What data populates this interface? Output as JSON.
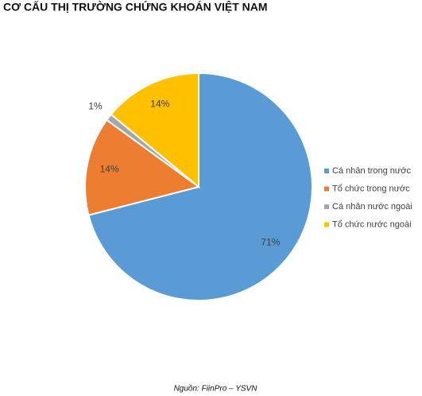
{
  "chart_data": {
    "type": "pie",
    "title": "CƠ CẤU THỊ TRƯỜNG CHỨNG KHOÁN VIỆT NAM",
    "categories": [
      "Cá nhân trong nước",
      "Tổ chức trong nước",
      "Cá nhân nước ngoài",
      "Tổ chức nước ngoài"
    ],
    "values": [
      71,
      14,
      1,
      14
    ],
    "value_labels": [
      "71%",
      "14%",
      "1%",
      "14%"
    ],
    "colors": [
      "#5b9bd5",
      "#ed7d31",
      "#a5a5a5",
      "#ffc000"
    ],
    "legend": "right",
    "source": "Nguồn: FiinPro – YSVN"
  }
}
